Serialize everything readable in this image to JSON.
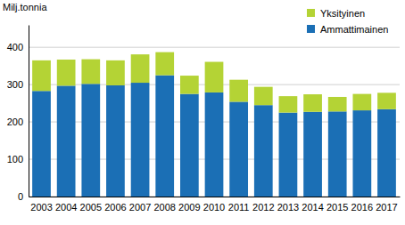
{
  "chart_data": {
    "type": "bar",
    "stacked": true,
    "y_label": "Milj.tonnia",
    "categories": [
      "2003",
      "2004",
      "2005",
      "2006",
      "2007",
      "2008",
      "2009",
      "2010",
      "2011",
      "2012",
      "2013",
      "2014",
      "2015",
      "2016",
      "2017"
    ],
    "series": [
      {
        "name": "Ammattimainen",
        "color": "#1b6fb5",
        "values": [
          283,
          297,
          302,
          298,
          305,
          325,
          275,
          279,
          254,
          245,
          225,
          227,
          228,
          231,
          234
        ]
      },
      {
        "name": "Yksityinen",
        "color": "#b4d335",
        "values": [
          82,
          70,
          66,
          67,
          76,
          62,
          49,
          82,
          59,
          49,
          44,
          47,
          39,
          44,
          44
        ]
      }
    ],
    "ylim": [
      0,
      460
    ],
    "yticks": [
      0,
      100,
      200,
      300,
      400
    ],
    "grid": true,
    "legend": "top-right"
  }
}
